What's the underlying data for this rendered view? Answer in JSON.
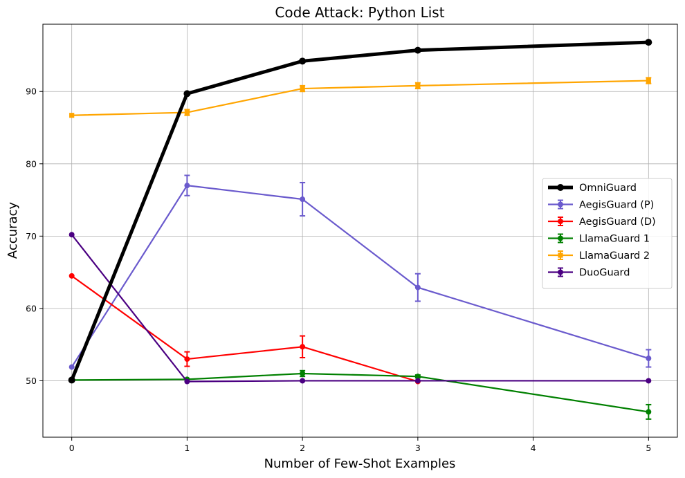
{
  "chart_data": {
    "type": "line",
    "title": "Code Attack: Python List",
    "xlabel": "Number of Few-Shot Examples",
    "ylabel": "Accuracy",
    "x": [
      0,
      1,
      2,
      3,
      4,
      5
    ],
    "xticks": [
      0,
      1,
      2,
      3,
      4,
      5
    ],
    "yticks": [
      50,
      60,
      70,
      80,
      90
    ],
    "xlim": [
      -0.25,
      5.25
    ],
    "ylim": [
      42.2,
      99.3
    ],
    "grid": true,
    "legend_position": "center-right",
    "series": [
      {
        "name": "OmniGuard",
        "color": "#000000",
        "marker": "circle",
        "linewidth": "thick",
        "x": [
          0,
          1,
          2,
          3,
          5
        ],
        "y": [
          50.1,
          89.7,
          94.2,
          95.7,
          96.8
        ],
        "err": [
          0,
          0,
          0,
          0,
          0
        ]
      },
      {
        "name": "AegisGuard (P)",
        "color": "#6a5acd",
        "marker": "circle",
        "x": [
          0,
          1,
          2,
          3,
          5
        ],
        "y": [
          51.9,
          77.0,
          75.1,
          62.9,
          53.1
        ],
        "err": [
          0,
          1.4,
          2.3,
          1.9,
          1.2
        ]
      },
      {
        "name": "AegisGuard (D)",
        "color": "#ff0000",
        "marker": "circle",
        "x": [
          0,
          1,
          2,
          3
        ],
        "y": [
          64.5,
          53.0,
          54.7,
          49.9
        ],
        "err": [
          0,
          1.0,
          1.5,
          0
        ]
      },
      {
        "name": "LlamaGuard 1",
        "color": "#008000",
        "marker": "circle",
        "x": [
          0,
          1,
          2,
          3,
          5
        ],
        "y": [
          50.1,
          50.2,
          51.0,
          50.6,
          45.7
        ],
        "err": [
          0,
          0,
          0.4,
          0.2,
          1.0
        ]
      },
      {
        "name": "LlamaGuard 2",
        "color": "#ffa500",
        "marker": "square",
        "x": [
          0,
          1,
          2,
          3,
          5
        ],
        "y": [
          86.7,
          87.1,
          90.4,
          90.8,
          91.5
        ],
        "err": [
          0,
          0.4,
          0.4,
          0.4,
          0.4
        ]
      },
      {
        "name": "DuoGuard",
        "color": "#4b0082",
        "marker": "circle",
        "x": [
          0,
          1,
          2,
          3,
          5
        ],
        "y": [
          70.2,
          49.9,
          50.0,
          50.0,
          50.0
        ],
        "err": [
          0,
          0,
          0,
          0,
          0
        ]
      }
    ]
  }
}
